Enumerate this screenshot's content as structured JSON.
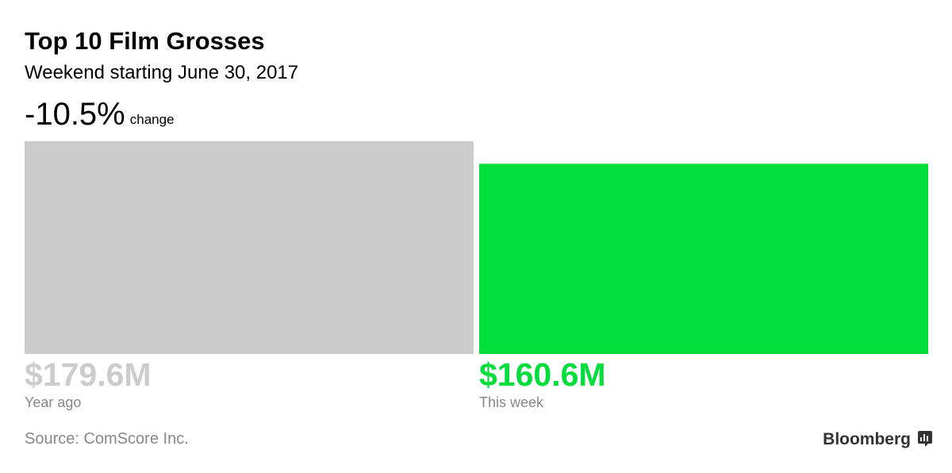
{
  "chart_data": {
    "type": "bar",
    "title": "Top 10 Film Grosses",
    "subtitle": "Weekend starting June 30, 2017",
    "change": "-10.5%",
    "change_caption": "change",
    "categories": [
      "Year ago",
      "This week"
    ],
    "values": [
      179.6,
      160.6
    ],
    "value_labels": [
      "$179.6M",
      "$160.6M"
    ],
    "colors": [
      "#cccccc",
      "#00dd3c"
    ],
    "source": "Source: ComScore Inc.",
    "logo": "Bloomberg"
  }
}
